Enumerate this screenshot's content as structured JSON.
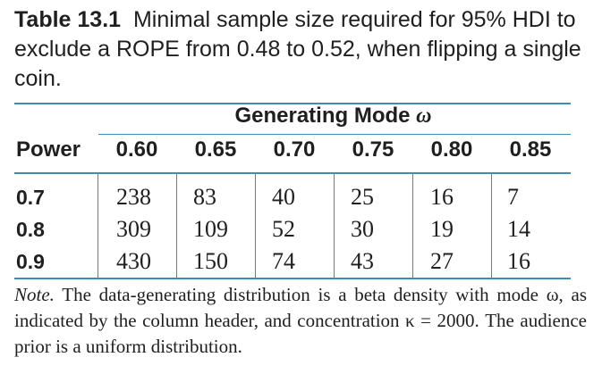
{
  "caption": {
    "label": "Table 13.1",
    "text": "Minimal sample size required for 95% HDI to exclude a ROPE from 0.48 to 0.52, when flipping a single coin."
  },
  "table": {
    "group_header": "Generating Mode",
    "group_header_symbol": "ω",
    "row_header": "Power",
    "columns": [
      "0.60",
      "0.65",
      "0.70",
      "0.75",
      "0.80",
      "0.85"
    ],
    "rows": [
      {
        "label": "0.7",
        "values": [
          "238",
          "83",
          "40",
          "25",
          "16",
          "7"
        ]
      },
      {
        "label": "0.8",
        "values": [
          "309",
          "109",
          "52",
          "30",
          "19",
          "14"
        ]
      },
      {
        "label": "0.9",
        "values": [
          "430",
          "150",
          "74",
          "43",
          "27",
          "16"
        ]
      }
    ]
  },
  "note": {
    "label": "Note.",
    "text": "The data-generating distribution is a beta density with mode ω, as indicated by the column header, and concentration κ = 2000. The audience prior is a uniform distribution."
  },
  "colors": {
    "rule": "#3c8fb4",
    "text": "#1f1f1f"
  }
}
